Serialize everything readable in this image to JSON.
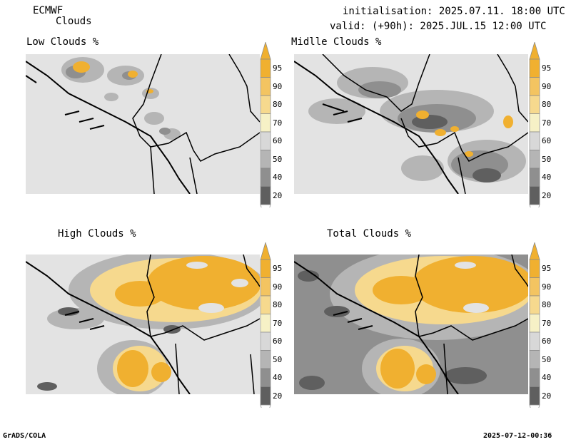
{
  "header": {
    "model": "ECMWF",
    "product": "Clouds",
    "init": "initialisation: 2025.07.11. 18:00 UTC",
    "valid": "valid: (+90h): 2025.JUL.15 12:00 UTC"
  },
  "panels": {
    "low": {
      "title": "Low Clouds %"
    },
    "middle": {
      "title": "Midlle Clouds %"
    },
    "high": {
      "title": "High Clouds %"
    },
    "total": {
      "title": "Total Clouds %"
    }
  },
  "colorbar": {
    "levels": [
      "95",
      "90",
      "80",
      "70",
      "60",
      "50",
      "40",
      "20"
    ],
    "colors": [
      "#f0b030",
      "#f3c461",
      "#f6d98e",
      "#f6f1c6",
      "#d8d8d8",
      "#b5b5b5",
      "#8f8f8f",
      "#5f5f5f"
    ]
  },
  "footer": {
    "left": "GrADS/COLA",
    "right": "2025-07-12-00:36"
  },
  "map": {
    "background_color": "#e3e3e3",
    "border_color": "#000000"
  }
}
